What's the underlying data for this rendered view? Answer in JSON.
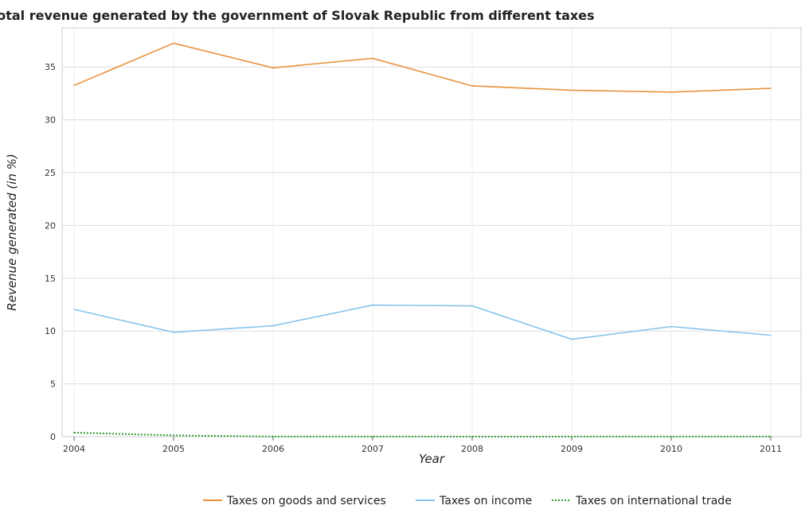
{
  "chart_data": {
    "type": "line",
    "title": "Total revenue generated by the government of Slovak Republic from different taxes",
    "xlabel": "Year",
    "ylabel": "Revenue generated (in %)",
    "categories": [
      "2004",
      "2005",
      "2006",
      "2007",
      "2008",
      "2009",
      "2010",
      "2011"
    ],
    "ylim": [
      0,
      40
    ],
    "yticks": [
      "0",
      "5",
      "10",
      "15",
      "20",
      "25",
      "30",
      "35"
    ],
    "grid": true,
    "legend_position": "bottom",
    "series": [
      {
        "name": "Taxes on goods and services",
        "color": "#e8913a",
        "dash": "solid",
        "values": [
          33.25,
          37.25,
          34.92,
          35.82,
          33.21,
          32.8,
          32.62,
          32.98
        ]
      },
      {
        "name": "Taxes on income",
        "color": "#87c4ee",
        "dash": "solid",
        "values": [
          12.05,
          9.88,
          10.5,
          12.46,
          12.38,
          9.22,
          10.42,
          9.6
        ]
      },
      {
        "name": "Taxes on international trade",
        "color": "#2e9e2e",
        "dash": "dotted",
        "values": [
          0.38,
          0.12,
          0.01,
          0.01,
          0.01,
          0.01,
          0.01,
          0.01
        ]
      }
    ]
  }
}
